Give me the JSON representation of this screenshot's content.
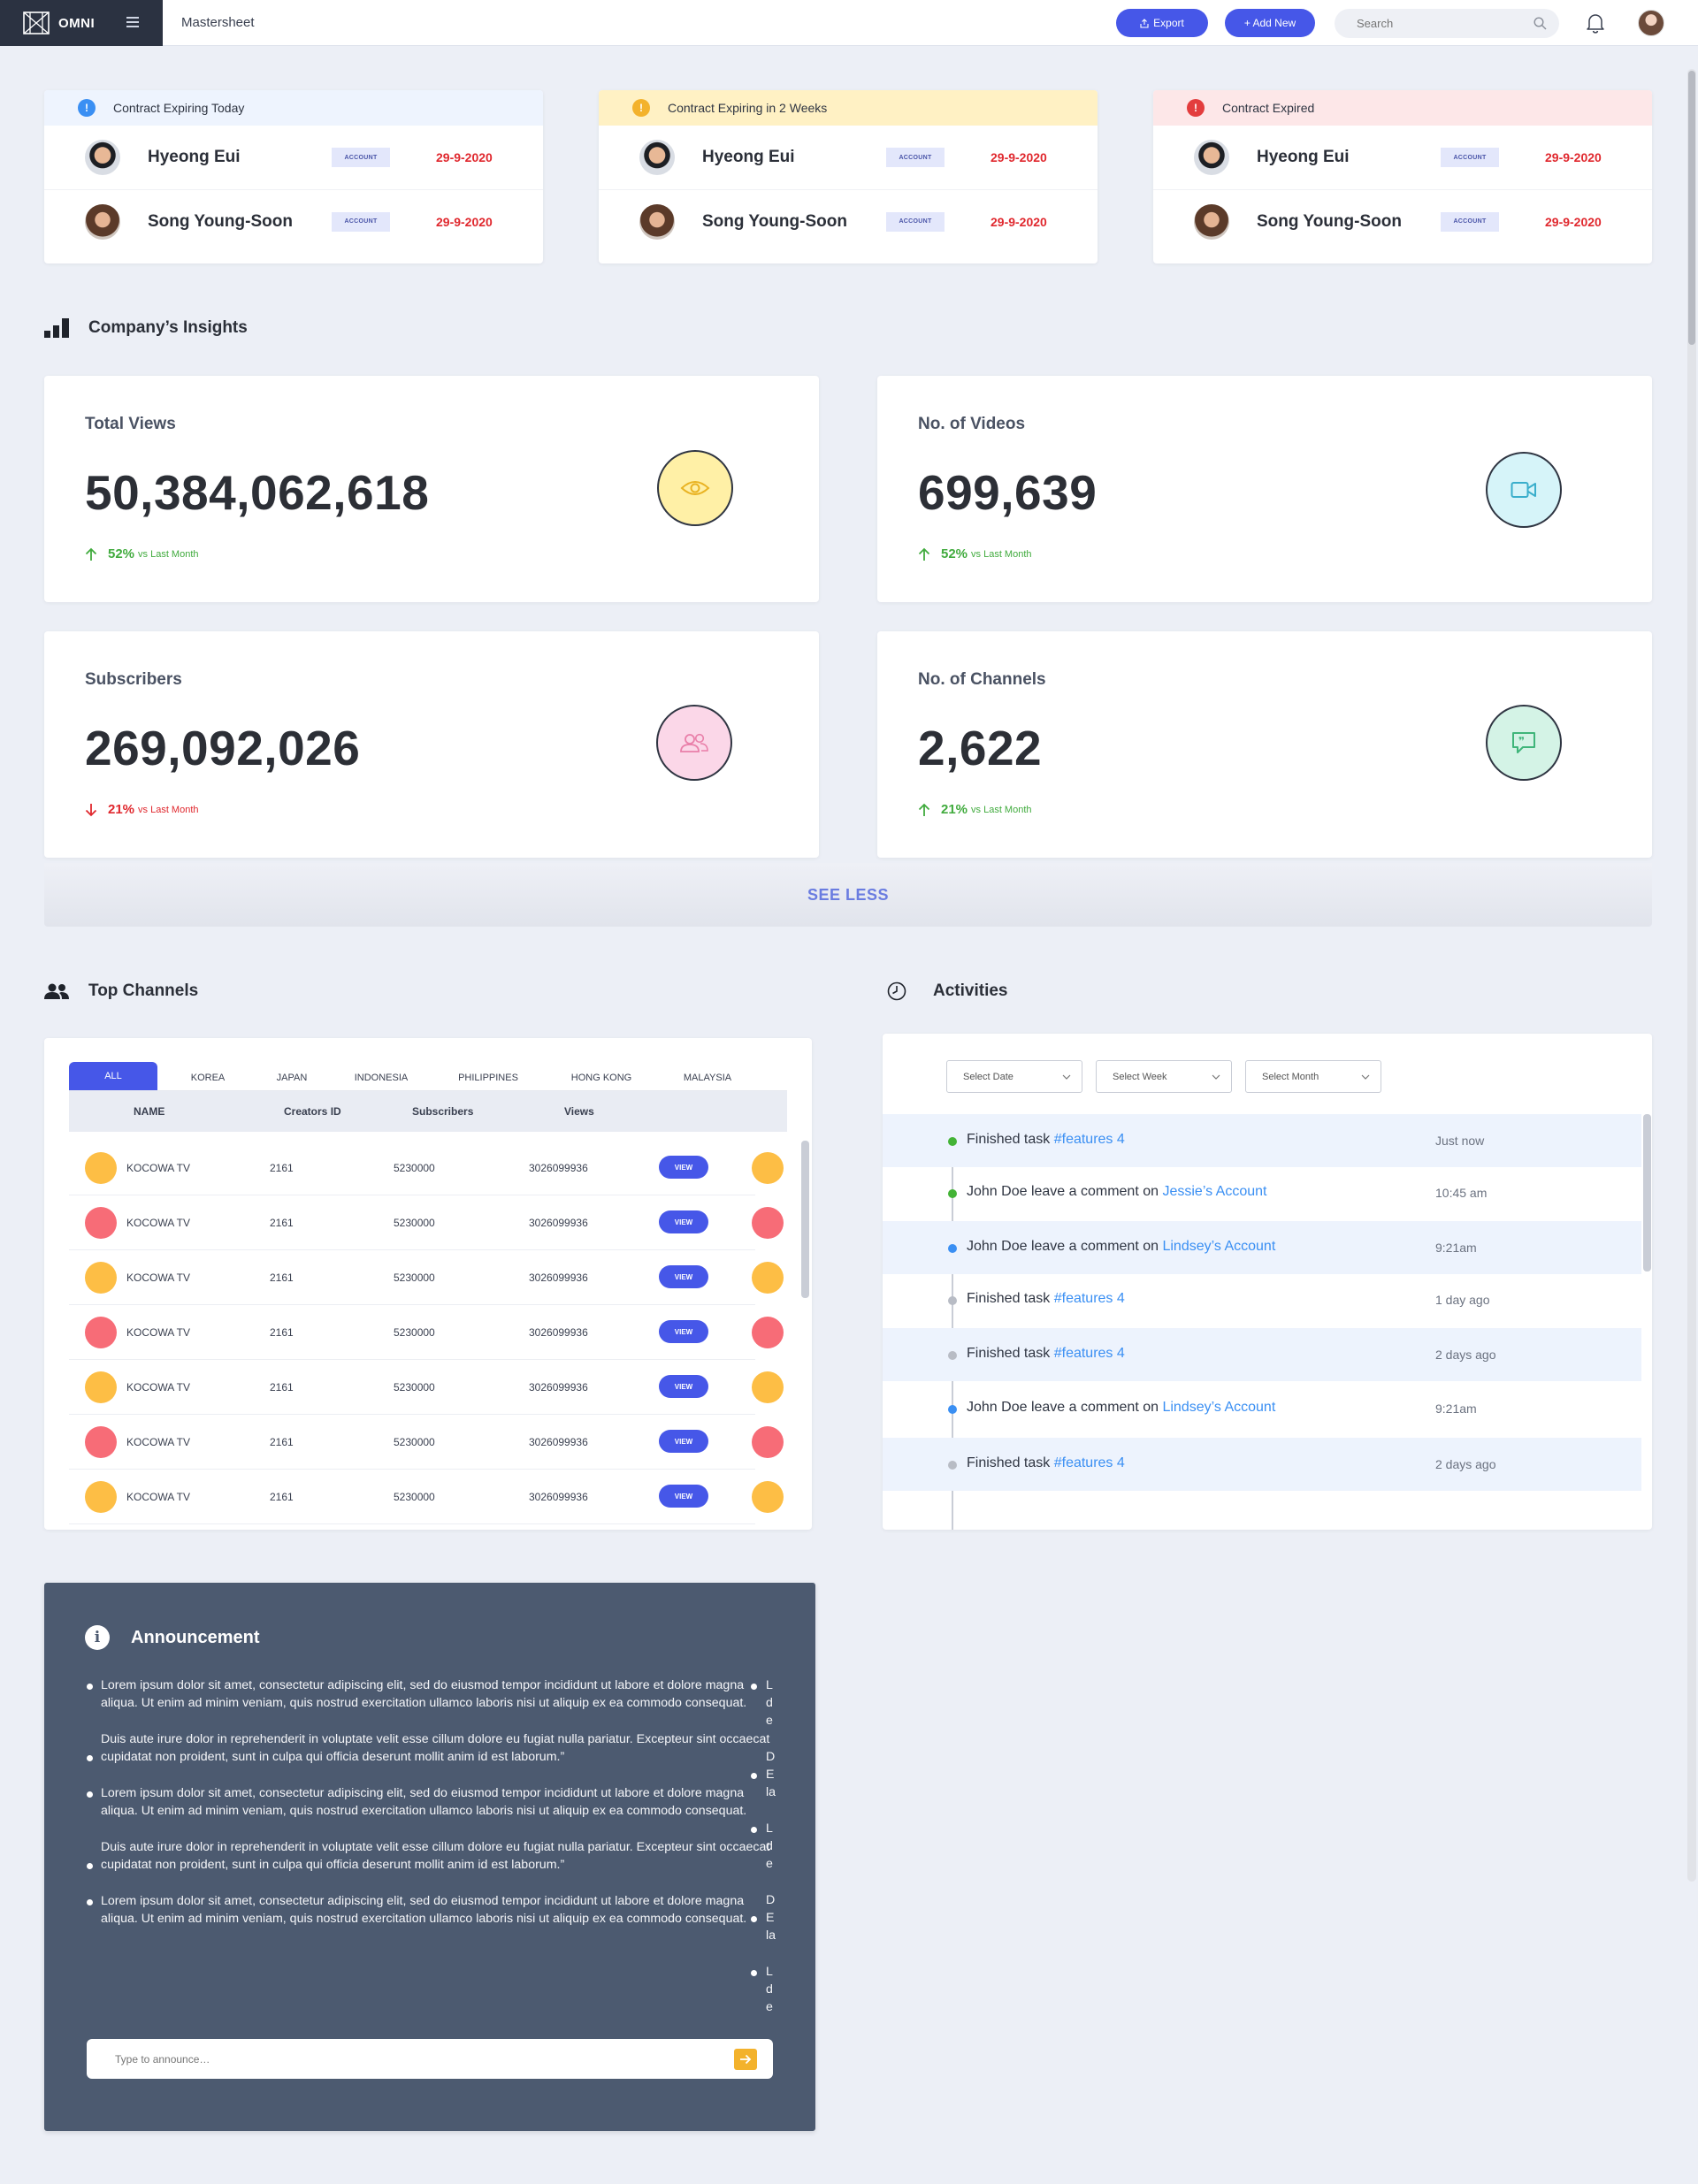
{
  "header": {
    "brand": "OMNI",
    "page_name": "Mastersheet",
    "export_label": "Export",
    "add_label": "+ Add New",
    "search_placeholder": "Search"
  },
  "contracts": [
    {
      "title": "Contract Expiring Today",
      "badge": "!",
      "rows": [
        {
          "name": "Hyeong Eui",
          "tag": "ACCOUNT",
          "date": "29-9-2020"
        },
        {
          "name": "Song Young-Soon",
          "tag": "ACCOUNT",
          "date": "29-9-2020"
        }
      ]
    },
    {
      "title": "Contract Expiring in 2 Weeks",
      "badge": "!",
      "rows": [
        {
          "name": "Hyeong Eui",
          "tag": "ACCOUNT",
          "date": "29-9-2020"
        },
        {
          "name": "Song Young-Soon",
          "tag": "ACCOUNT",
          "date": "29-9-2020"
        }
      ]
    },
    {
      "title": "Contract Expired",
      "badge": "!",
      "rows": [
        {
          "name": "Hyeong Eui",
          "tag": "ACCOUNT",
          "date": "29-9-2020"
        },
        {
          "name": "Song Young-Soon",
          "tag": "ACCOUNT",
          "date": "29-9-2020"
        }
      ]
    }
  ],
  "insights": {
    "title": "Company’s Insights",
    "cards": [
      {
        "label": "Total Views",
        "value": "50,384,062,618",
        "change": "52%",
        "change_text": "vs Last Month",
        "direction": "up",
        "icon": "eye-icon"
      },
      {
        "label": "No. of Videos",
        "value": "699,639",
        "change": "52%",
        "change_text": "vs Last Month",
        "direction": "up",
        "icon": "video-camera-icon"
      },
      {
        "label": "Subscribers",
        "value": "269,092,026",
        "change": "21%",
        "change_text": "vs Last Month",
        "direction": "down",
        "icon": "users-icon"
      },
      {
        "label": "No. of Channels",
        "value": "2,622",
        "change": "21%",
        "change_text": "vs Last Month",
        "direction": "up",
        "icon": "chat-quote-icon"
      }
    ],
    "see_less": "SEE LESS"
  },
  "top_channels": {
    "title": "Top Channels",
    "tabs": [
      "ALL",
      "KOREA",
      "JAPAN",
      "INDONESIA",
      "PHILIPPINES",
      "HONG KONG",
      "MALAYSIA"
    ],
    "columns": [
      "NAME",
      "Creators ID",
      "Subscribers",
      "Views"
    ],
    "view_label": "VIEW",
    "rows": [
      {
        "name": "KOCOWA TV",
        "creator_id": "2161",
        "subscribers": "5230000",
        "views": "3026099936",
        "color": "#fdbe45"
      },
      {
        "name": "KOCOWA TV",
        "creator_id": "2161",
        "subscribers": "5230000",
        "views": "3026099936",
        "color": "#f76c77"
      },
      {
        "name": "KOCOWA TV",
        "creator_id": "2161",
        "subscribers": "5230000",
        "views": "3026099936",
        "color": "#fdbe45"
      },
      {
        "name": "KOCOWA TV",
        "creator_id": "2161",
        "subscribers": "5230000",
        "views": "3026099936",
        "color": "#f76c77"
      },
      {
        "name": "KOCOWA TV",
        "creator_id": "2161",
        "subscribers": "5230000",
        "views": "3026099936",
        "color": "#fdbe45"
      },
      {
        "name": "KOCOWA TV",
        "creator_id": "2161",
        "subscribers": "5230000",
        "views": "3026099936",
        "color": "#f76c77"
      },
      {
        "name": "KOCOWA TV",
        "creator_id": "2161",
        "subscribers": "5230000",
        "views": "3026099936",
        "color": "#fdbe45"
      }
    ]
  },
  "activities": {
    "title": "Activities",
    "filters": [
      "Select Date",
      "Select Week",
      "Select Month"
    ],
    "items": [
      {
        "text": "Finished task ",
        "link": "#features 4",
        "time": "Just now",
        "dot": "#43b336"
      },
      {
        "text": "John Doe leave a comment on ",
        "link": "Jessie’s Account",
        "time": "10:45 am",
        "dot": "#43b336"
      },
      {
        "text": "John Doe leave a comment  on ",
        "link": "Lindsey’s Account",
        "time": "9:21am",
        "dot": "#3a8ff3"
      },
      {
        "text": "Finished task ",
        "link": "#features 4",
        "time": "1 day ago",
        "dot": "#b8bcc5"
      },
      {
        "text": "Finished task ",
        "link": "#features 4",
        "time": "2 days ago",
        "dot": "#b8bcc5"
      },
      {
        "text": "John Doe leave a comment  on ",
        "link": "Lindsey’s Account",
        "time": "9:21am",
        "dot": "#3a8ff3"
      },
      {
        "text": "Finished task ",
        "link": "#features 4",
        "time": "2 days ago",
        "dot": "#b8bcc5"
      }
    ]
  },
  "announcement": {
    "title": "Announcement",
    "items": [
      "Lorem ipsum dolor sit amet, consectetur adipiscing elit, sed do eiusmod tempor incididunt ut labore et dolore magna aliqua. Ut enim ad minim veniam, quis nostrud exercitation ullamco laboris nisi ut aliquip ex ea commodo consequat.",
      "Duis aute irure dolor in reprehenderit in voluptate velit esse cillum dolore eu fugiat nulla pariatur. Excepteur sint occaecat cupidatat non proident, sunt in culpa qui officia deserunt mollit anim id est laborum.”",
      "Lorem ipsum dolor sit amet, consectetur adipiscing elit, sed do eiusmod tempor incididunt ut labore et dolore magna aliqua. Ut enim ad minim veniam, quis nostrud exercitation ullamco laboris nisi ut aliquip ex ea commodo consequat.",
      "Duis aute irure dolor in reprehenderit in voluptate velit esse cillum dolore eu fugiat nulla pariatur. Excepteur sint occaecat cupidatat non proident, sunt in culpa qui officia deserunt mollit anim id est laborum.”",
      "Lorem ipsum dolor sit amet, consectetur adipiscing elit, sed do eiusmod tempor incididunt ut labore et dolore magna aliqua. Ut enim ad minim veniam, quis nostrud exercitation ullamco laboris nisi ut aliquip ex ea commodo consequat."
    ],
    "overflow_column": [
      [
        "L",
        "d",
        "e"
      ],
      [
        "D",
        "E",
        "la"
      ],
      [
        "L",
        "d",
        "e"
      ],
      [
        "D",
        "E",
        "la"
      ],
      [
        "L",
        "d",
        "e"
      ]
    ],
    "input_placeholder": "Type to announce…",
    "send_icon": "arrow-right-icon"
  }
}
